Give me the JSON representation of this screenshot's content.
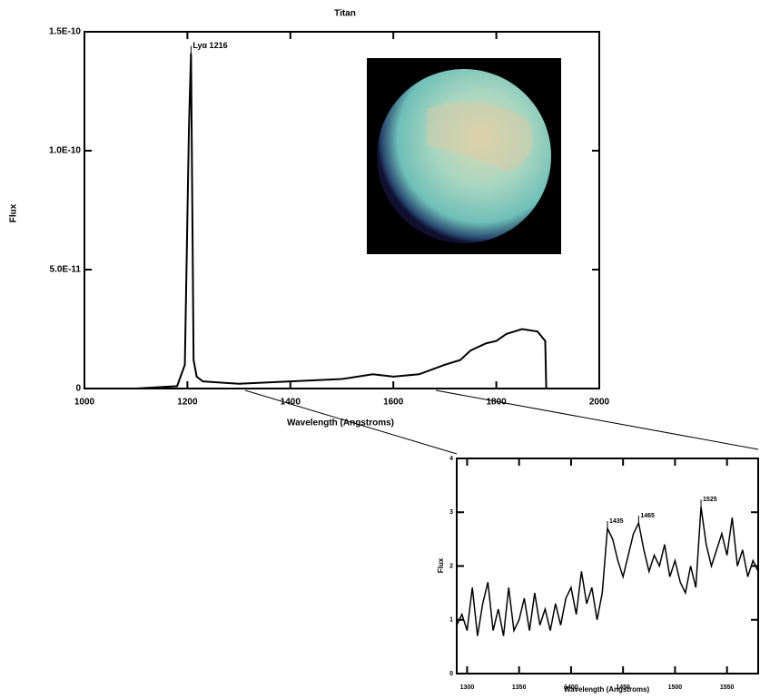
{
  "chart_data": [
    {
      "type": "line",
      "title": "Titan",
      "x_label": "Wavelength (Angstroms)",
      "y_label": "Flux",
      "color": "#000000",
      "x": [
        1100,
        1180,
        1195,
        1203,
        1207,
        1212,
        1218,
        1230,
        1300,
        1400,
        1500,
        1560,
        1600,
        1650,
        1700,
        1730,
        1750,
        1780,
        1800,
        1820,
        1850,
        1880,
        1895,
        1897
      ],
      "values": [
        0,
        1e-12,
        1e-11,
        1.1e-10,
        1.41e-10,
        1.2e-11,
        5e-12,
        3e-12,
        2e-12,
        3e-12,
        4e-12,
        6e-12,
        5e-12,
        6e-12,
        1e-11,
        1.2e-11,
        1.6e-11,
        1.9e-11,
        2e-11,
        2.3e-11,
        2.5e-11,
        2.4e-11,
        2e-11,
        0
      ],
      "xlim": [
        1000,
        2000
      ],
      "xticks": [
        1000,
        1200,
        1400,
        1600,
        1800,
        2000
      ],
      "ylim": [
        0,
        1.5e-10
      ],
      "yticks": [
        0,
        {
          "value": 5e-11,
          "label": "5.0E-11"
        },
        {
          "value": 1e-10,
          "label": "1.0E-10"
        },
        {
          "value": 1.5e-10,
          "label": "1.5E-10"
        }
      ],
      "annotations": [
        {
          "text": "Lyα 1216",
          "x": 1207,
          "y": 1.41e-10
        }
      ]
    },
    {
      "type": "line",
      "x_label": "Wavelength (Angstroms)",
      "y_label": "Flux",
      "color": "#000000",
      "x": [
        1290,
        1295,
        1300,
        1305,
        1310,
        1315,
        1320,
        1325,
        1330,
        1335,
        1340,
        1345,
        1350,
        1355,
        1360,
        1365,
        1370,
        1375,
        1380,
        1385,
        1390,
        1395,
        1400,
        1405,
        1410,
        1415,
        1420,
        1425,
        1430,
        1435,
        1440,
        1445,
        1450,
        1455,
        1460,
        1465,
        1470,
        1475,
        1480,
        1485,
        1490,
        1495,
        1500,
        1505,
        1510,
        1515,
        1520,
        1525,
        1530,
        1535,
        1540,
        1545,
        1550,
        1555,
        1560,
        1565,
        1570,
        1575,
        1580
      ],
      "values": [
        0.9,
        1.1,
        0.8,
        1.6,
        0.7,
        1.3,
        1.7,
        0.8,
        1.2,
        0.7,
        1.6,
        0.8,
        1.0,
        1.4,
        0.8,
        1.5,
        0.9,
        1.2,
        0.8,
        1.3,
        0.9,
        1.4,
        1.6,
        1.1,
        1.9,
        1.3,
        1.6,
        1.0,
        1.5,
        2.7,
        2.5,
        2.1,
        1.8,
        2.2,
        2.6,
        2.8,
        2.3,
        1.9,
        2.2,
        2.0,
        2.4,
        1.8,
        2.1,
        1.7,
        1.5,
        2.0,
        1.6,
        3.1,
        2.4,
        2.0,
        2.3,
        2.6,
        2.2,
        2.9,
        2.0,
        2.3,
        1.8,
        2.1,
        1.9
      ],
      "xlim": [
        1290,
        1580
      ],
      "xticks": [
        1300,
        1350,
        1400,
        1450,
        1500,
        1550
      ],
      "ylim": [
        0,
        4
      ],
      "yticks": [
        0,
        1,
        2,
        3,
        4
      ],
      "annotations": [
        {
          "text": "1435",
          "x": 1435,
          "y": 2.7
        },
        {
          "text": "1465",
          "x": 1465,
          "y": 2.8
        },
        {
          "text": "1525",
          "x": 1525,
          "y": 3.1
        }
      ]
    }
  ]
}
